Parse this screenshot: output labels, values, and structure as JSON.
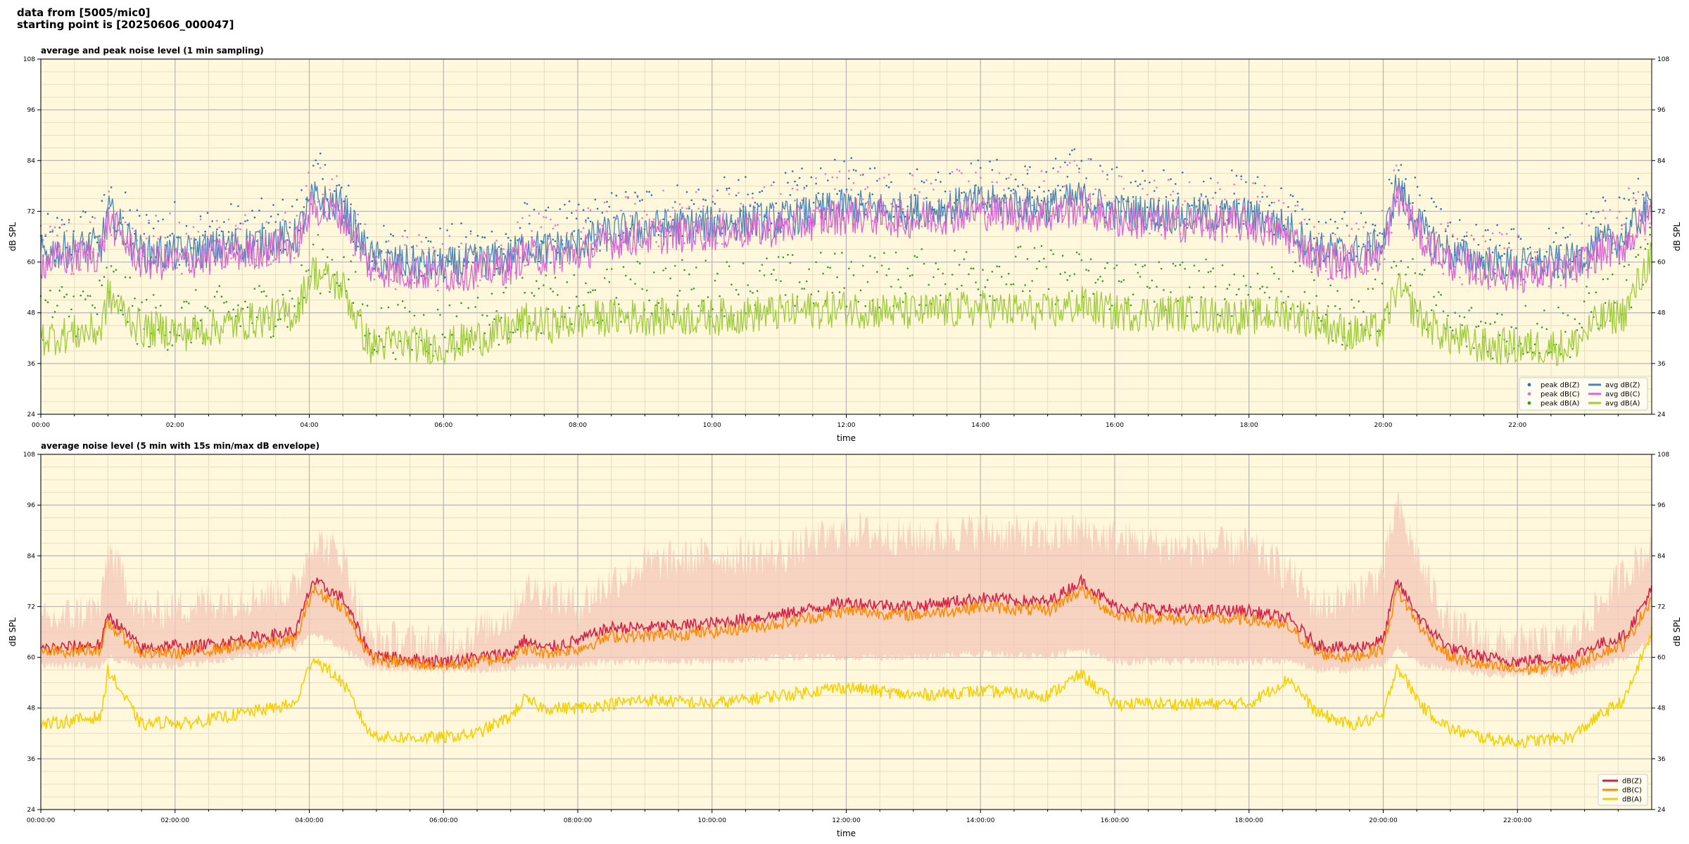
{
  "header": {
    "line1": "data from [5005/mic0]",
    "line2": "starting point is [20250606_000047]"
  },
  "chart_data": [
    {
      "type": "line",
      "title": "average and peak noise level (1 min sampling)",
      "xlabel": "time",
      "ylabel": "dB SPL",
      "ylim": [
        24,
        108
      ],
      "yticks": [
        24,
        36,
        48,
        60,
        72,
        84,
        96,
        108
      ],
      "xlim_hours": [
        0,
        24
      ],
      "xtick_labels": [
        "00:00",
        "02:00",
        "04:00",
        "06:00",
        "08:00",
        "10:00",
        "12:00",
        "14:00",
        "16:00",
        "18:00",
        "20:00",
        "22:00"
      ],
      "grid": true,
      "legend": "bottom-right",
      "legend_columns": 2,
      "profile_hours": [
        0,
        0.9,
        1.0,
        1.5,
        2.0,
        2.05,
        3.8,
        4.05,
        4.5,
        4.9,
        5.2,
        6.0,
        6.5,
        7.0,
        7.2,
        7.5,
        8.0,
        8.5,
        9.0,
        10.0,
        11.0,
        12.0,
        13.0,
        14.0,
        15.0,
        15.5,
        16.0,
        17.0,
        18.0,
        18.6,
        19.0,
        19.5,
        20.0,
        20.2,
        20.6,
        21.0,
        21.5,
        22.0,
        22.8,
        23.2,
        23.6,
        24.0
      ],
      "series": [
        {
          "name": "peak dB(Z)",
          "kind": "scatter",
          "color": "#1f77b4",
          "values": [
            64,
            68,
            74,
            66,
            68,
            66,
            69,
            80,
            75,
            62,
            62,
            62,
            63,
            64,
            68,
            66,
            68,
            70,
            72,
            73,
            74,
            78,
            76,
            78,
            77,
            81,
            76,
            75,
            75,
            72,
            64,
            65,
            68,
            80,
            70,
            64,
            62,
            62,
            62,
            68,
            72,
            75
          ]
        },
        {
          "name": "peak dB(C)",
          "kind": "scatter",
          "color": "#e377c2",
          "values": [
            62,
            66,
            74,
            64,
            66,
            64,
            67,
            78,
            73,
            60,
            60,
            60,
            61,
            62,
            66,
            64,
            66,
            68,
            70,
            71,
            72,
            76,
            74,
            76,
            75,
            79,
            74,
            73,
            73,
            70,
            62,
            63,
            66,
            78,
            68,
            62,
            60,
            60,
            60,
            66,
            70,
            73
          ]
        },
        {
          "name": "peak dB(A)",
          "kind": "scatter",
          "color": "#2ca02c",
          "values": [
            48,
            50,
            56,
            46,
            46,
            46,
            50,
            60,
            58,
            44,
            44,
            44,
            46,
            48,
            50,
            50,
            50,
            52,
            54,
            54,
            55,
            56,
            56,
            58,
            57,
            56,
            55,
            54,
            54,
            54,
            50,
            46,
            50,
            60,
            52,
            44,
            44,
            44,
            44,
            50,
            54,
            62
          ]
        },
        {
          "name": "avg dB(Z)",
          "kind": "line",
          "color": "#4a85b8",
          "values": [
            62,
            64,
            72,
            62,
            62,
            62,
            66,
            75,
            73,
            61,
            60,
            59,
            60,
            61,
            64,
            63,
            64,
            67,
            68,
            69,
            70,
            73,
            72,
            74,
            73,
            75,
            72,
            71,
            71,
            68,
            63,
            62,
            64,
            78,
            67,
            62,
            60,
            59,
            60,
            64,
            66,
            74
          ]
        },
        {
          "name": "avg dB(C)",
          "kind": "line",
          "color": "#d866d3",
          "values": [
            60,
            62,
            70,
            60,
            60,
            60,
            64,
            73,
            71,
            59,
            58,
            57,
            58,
            59,
            62,
            61,
            62,
            65,
            66,
            67,
            68,
            71,
            70,
            72,
            71,
            73,
            70,
            69,
            69,
            66,
            61,
            60,
            62,
            76,
            65,
            60,
            58,
            57,
            58,
            62,
            64,
            72
          ]
        },
        {
          "name": "avg dB(A)",
          "kind": "line",
          "color": "#9ecc3d",
          "values": [
            42,
            44,
            52,
            44,
            44,
            43,
            48,
            58,
            54,
            40,
            41,
            40,
            42,
            44,
            46,
            45,
            46,
            47,
            47,
            47,
            48,
            49,
            48,
            49,
            48,
            50,
            48,
            48,
            47,
            48,
            46,
            43,
            44,
            54,
            46,
            42,
            40,
            40,
            40,
            46,
            48,
            62
          ]
        }
      ]
    },
    {
      "type": "line",
      "title": "average noise level (5 min with 15s min/max dB envelope)",
      "xlabel": "time",
      "ylabel": "dB SPL",
      "ylim": [
        24,
        108
      ],
      "yticks": [
        24,
        36,
        48,
        60,
        72,
        84,
        96,
        108
      ],
      "xlim_hours": [
        0,
        24
      ],
      "xtick_labels": [
        "00:00:00",
        "02:00:00",
        "04:00:00",
        "06:00:00",
        "08:00:00",
        "10:00:00",
        "12:00:00",
        "14:00:00",
        "16:00:00",
        "18:00:00",
        "20:00:00",
        "22:00:00"
      ],
      "grid": true,
      "legend": "bottom-right",
      "legend_columns": 1,
      "profile_hours": [
        0,
        0.9,
        1.0,
        1.5,
        2.0,
        2.05,
        3.8,
        4.05,
        4.5,
        4.9,
        5.2,
        6.0,
        6.5,
        7.0,
        7.2,
        7.5,
        8.0,
        8.5,
        9.0,
        10.0,
        11.0,
        12.0,
        13.0,
        14.0,
        15.0,
        15.5,
        16.0,
        17.0,
        18.0,
        18.6,
        19.0,
        19.5,
        20.0,
        20.2,
        20.6,
        21.0,
        21.5,
        22.0,
        22.8,
        23.2,
        23.6,
        24.0
      ],
      "envelope": {
        "color": "#f4c7b8",
        "low": [
          58,
          58,
          60,
          58,
          58,
          58,
          62,
          66,
          62,
          58,
          57,
          57,
          57,
          57,
          58,
          58,
          58,
          59,
          59,
          59,
          60,
          60,
          60,
          61,
          60,
          62,
          59,
          59,
          59,
          59,
          57,
          57,
          58,
          62,
          58,
          57,
          56,
          56,
          56,
          58,
          60,
          64
        ],
        "high": [
          68,
          72,
          86,
          70,
          72,
          72,
          76,
          88,
          84,
          64,
          64,
          63,
          66,
          70,
          76,
          76,
          72,
          78,
          82,
          84,
          84,
          90,
          88,
          90,
          88,
          90,
          88,
          86,
          86,
          80,
          72,
          74,
          80,
          96,
          80,
          68,
          64,
          63,
          64,
          72,
          80,
          86
        ]
      },
      "series": [
        {
          "name": "dB(Z)",
          "color": "#d62045",
          "values": [
            62,
            63,
            70,
            62,
            63,
            62,
            66,
            78,
            74,
            61,
            60,
            59,
            60,
            61,
            64,
            62,
            64,
            67,
            67,
            68,
            70,
            73,
            72,
            74,
            73,
            78,
            72,
            71,
            71,
            69,
            63,
            62,
            64,
            78,
            68,
            62,
            60,
            59,
            60,
            63,
            65,
            76
          ]
        },
        {
          "name": "dB(C)",
          "color": "#ff8c00",
          "values": [
            61,
            62,
            68,
            61,
            61,
            61,
            64,
            76,
            72,
            60,
            59,
            58,
            59,
            60,
            62,
            61,
            62,
            65,
            65,
            66,
            68,
            71,
            70,
            72,
            71,
            76,
            70,
            69,
            69,
            67,
            61,
            60,
            62,
            76,
            66,
            60,
            58,
            57,
            58,
            61,
            63,
            74
          ]
        },
        {
          "name": "dB(A)",
          "color": "#f5d000",
          "values": [
            44,
            46,
            57,
            44,
            45,
            44,
            49,
            60,
            54,
            42,
            41,
            41,
            42,
            46,
            50,
            48,
            48,
            49,
            50,
            49,
            51,
            53,
            51,
            52,
            51,
            56,
            49,
            49,
            49,
            55,
            47,
            44,
            46,
            58,
            48,
            43,
            41,
            40,
            41,
            46,
            50,
            66
          ]
        }
      ]
    }
  ]
}
